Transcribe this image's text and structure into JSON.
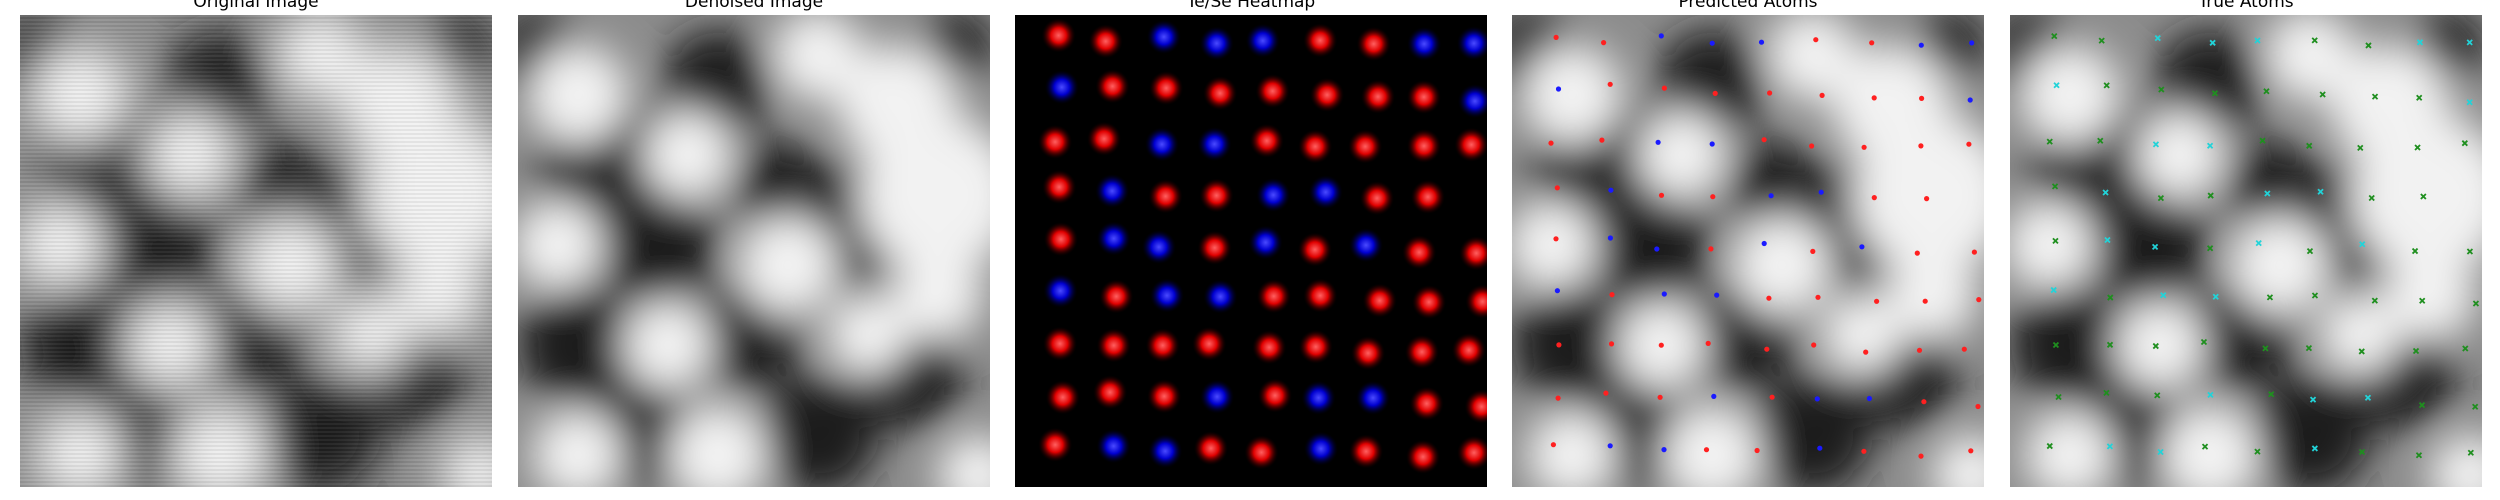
{
  "figure": {
    "panels": [
      {
        "id": "original",
        "title": "Original Image"
      },
      {
        "id": "denoised",
        "title": "Denoised Image"
      },
      {
        "id": "heatmap",
        "title": "Te/Se Heatmap"
      },
      {
        "id": "predicted",
        "title": "Predicted Atoms"
      },
      {
        "id": "true",
        "title": "True Atoms"
      }
    ]
  },
  "colors": {
    "te": "#ff2020",
    "se": "#1a1aff",
    "true_te": "#1f8f1f",
    "true_se": "#22d3d8",
    "background": "#000000"
  },
  "lattice": {
    "pattern_note_te_se_grid": [
      "RRBBBRRBB",
      "BRRRRRRRB",
      "RRBBRRRRR",
      "RBRRBBRR",
      "RBBRBRBRR",
      "BRBBRRRRR",
      "RRRRRRRRR",
      "RRRBRBBRR",
      "RBBRRBRRR"
    ]
  }
}
